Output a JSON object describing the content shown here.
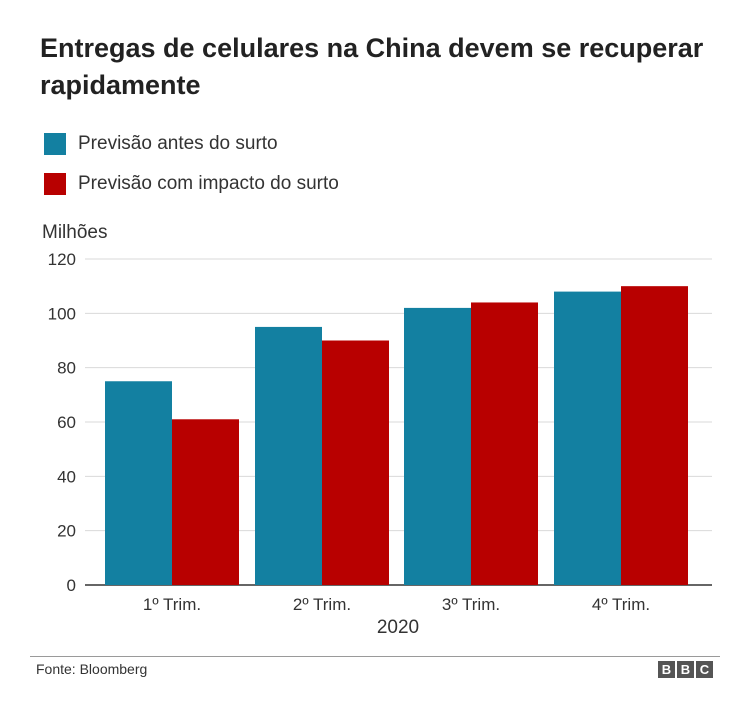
{
  "title": "Entregas de celulares na China devem se recuperar rapidamente",
  "source": "Fonte: Bloomberg",
  "logo": [
    "B",
    "B",
    "C"
  ],
  "colors": {
    "gridline": "#d9d9d9",
    "axis": "#333333"
  },
  "chart_data": {
    "type": "bar",
    "ylabel": "Milhões",
    "xlabel": "2020",
    "ylim": [
      0,
      120
    ],
    "yticks": [
      0,
      20,
      40,
      60,
      80,
      100,
      120
    ],
    "grid": true,
    "legend_placement": "top-left",
    "categories": [
      "1º Trim.",
      "2º Trim.",
      "3º Trim.",
      "4º Trim."
    ],
    "series": [
      {
        "name": "Previsão antes do surto",
        "color": "#1380a1",
        "values": [
          75,
          95,
          102,
          108
        ]
      },
      {
        "name": "Previsão com impacto do surto",
        "color": "#b80000",
        "values": [
          61,
          90,
          104,
          110
        ]
      }
    ]
  }
}
